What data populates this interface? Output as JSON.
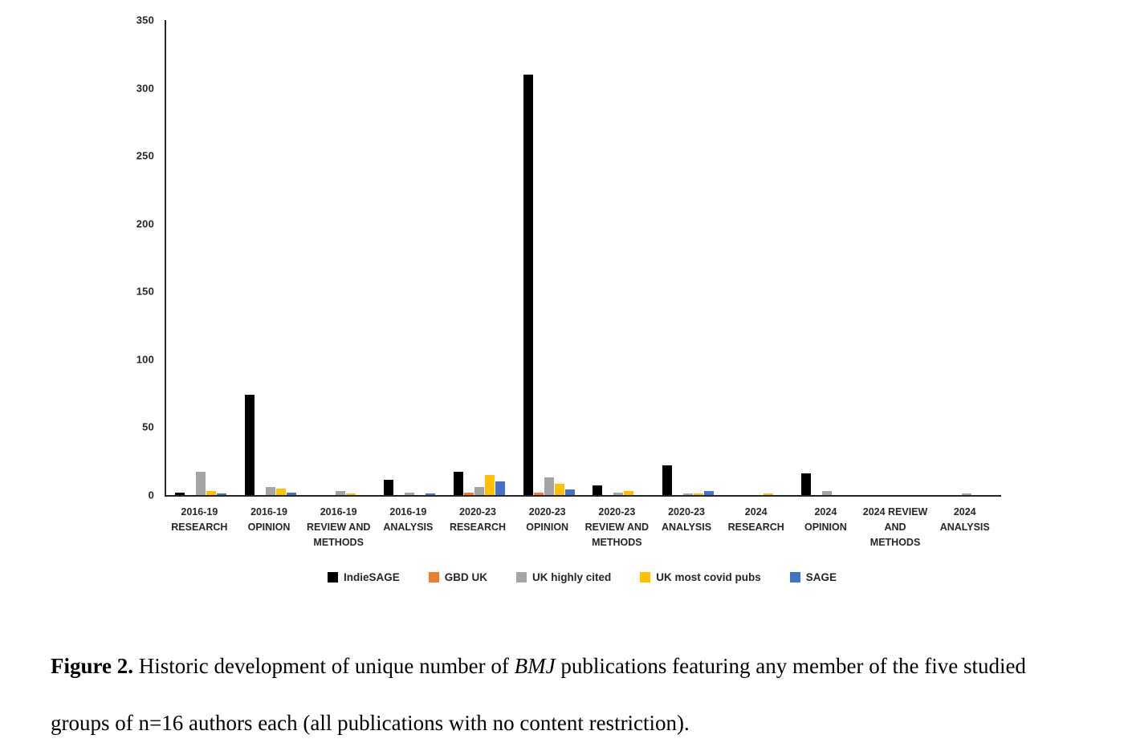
{
  "chart_data": {
    "type": "bar",
    "title": "",
    "xlabel": "",
    "ylabel": "",
    "ylim": [
      0,
      350
    ],
    "yticks": [
      0,
      50,
      100,
      150,
      200,
      250,
      300,
      350
    ],
    "grid": false,
    "legend_position": "bottom",
    "categories": [
      "2016-19 RESEARCH",
      "2016-19 OPINION",
      "2016-19 REVIEW AND METHODS",
      "2016-19 ANALYSIS",
      "2020-23 RESEARCH",
      "2020-23 OPINION",
      "2020-23 REVIEW AND METHODS",
      "2020-23 ANALYSIS",
      "2024 RESEARCH",
      "2024 OPINION",
      "2024 REVIEW AND METHODS",
      "2024 ANALYSIS"
    ],
    "series": [
      {
        "name": "IndieSAGE",
        "color": "#000000",
        "values": [
          2,
          74,
          0,
          11,
          17,
          310,
          7,
          22,
          0,
          16,
          0,
          0
        ]
      },
      {
        "name": "GBD UK",
        "color": "#ED7D31",
        "values": [
          0,
          0,
          0,
          0,
          2,
          2,
          0,
          0,
          0,
          0,
          0,
          0
        ]
      },
      {
        "name": "UK highly cited",
        "color": "#A5A5A5",
        "values": [
          17,
          6,
          3,
          2,
          6,
          13,
          2,
          1,
          0,
          3,
          0,
          1
        ]
      },
      {
        "name": "UK most covid pubs",
        "color": "#FFC000",
        "values": [
          3,
          5,
          1,
          0,
          15,
          8,
          3,
          1,
          1,
          0,
          0,
          0
        ]
      },
      {
        "name": "SAGE",
        "color": "#4472C4",
        "values": [
          1,
          2,
          0,
          1,
          10,
          4,
          0,
          3,
          0,
          0,
          0,
          0
        ]
      }
    ]
  },
  "caption": {
    "label": "Figure 2.",
    "before_italic": " Historic development of unique number of ",
    "italic": "BMJ",
    "after_italic": " publications featuring any member of the five studied groups of n=16 authors each (all publications with no content restriction)."
  }
}
